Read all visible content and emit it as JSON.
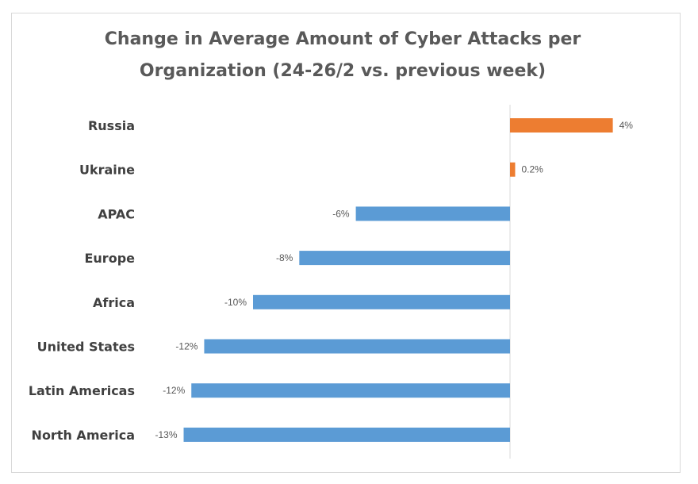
{
  "chart_data": {
    "type": "bar",
    "orientation": "horizontal",
    "title": "Change in Average Amount of Cyber Attacks per Organization (24-26/2 vs. previous week)",
    "title_lines": [
      "Change in Average Amount of Cyber Attacks per",
      "Organization (24-26/2 vs. previous week)"
    ],
    "categories": [
      "Russia",
      "Ukraine",
      "APAC",
      "Europe",
      "Africa",
      "United States",
      "Latin Americas",
      "North America"
    ],
    "values": [
      4,
      0.2,
      -6,
      -8.2,
      -10,
      -11.9,
      -12.4,
      -12.7
    ],
    "data_labels": [
      "4%",
      "0.2%",
      "-6%",
      "-8%",
      "-10%",
      "-12%",
      "-12%",
      "-13%"
    ],
    "xlabel": "",
    "ylabel": "",
    "xlim": [
      -13.2,
      6.5
    ],
    "grid": false,
    "legend": "none",
    "colors": {
      "positive": "#ED7D31",
      "negative": "#5B9BD5",
      "axis": "#d9d9d9"
    }
  }
}
